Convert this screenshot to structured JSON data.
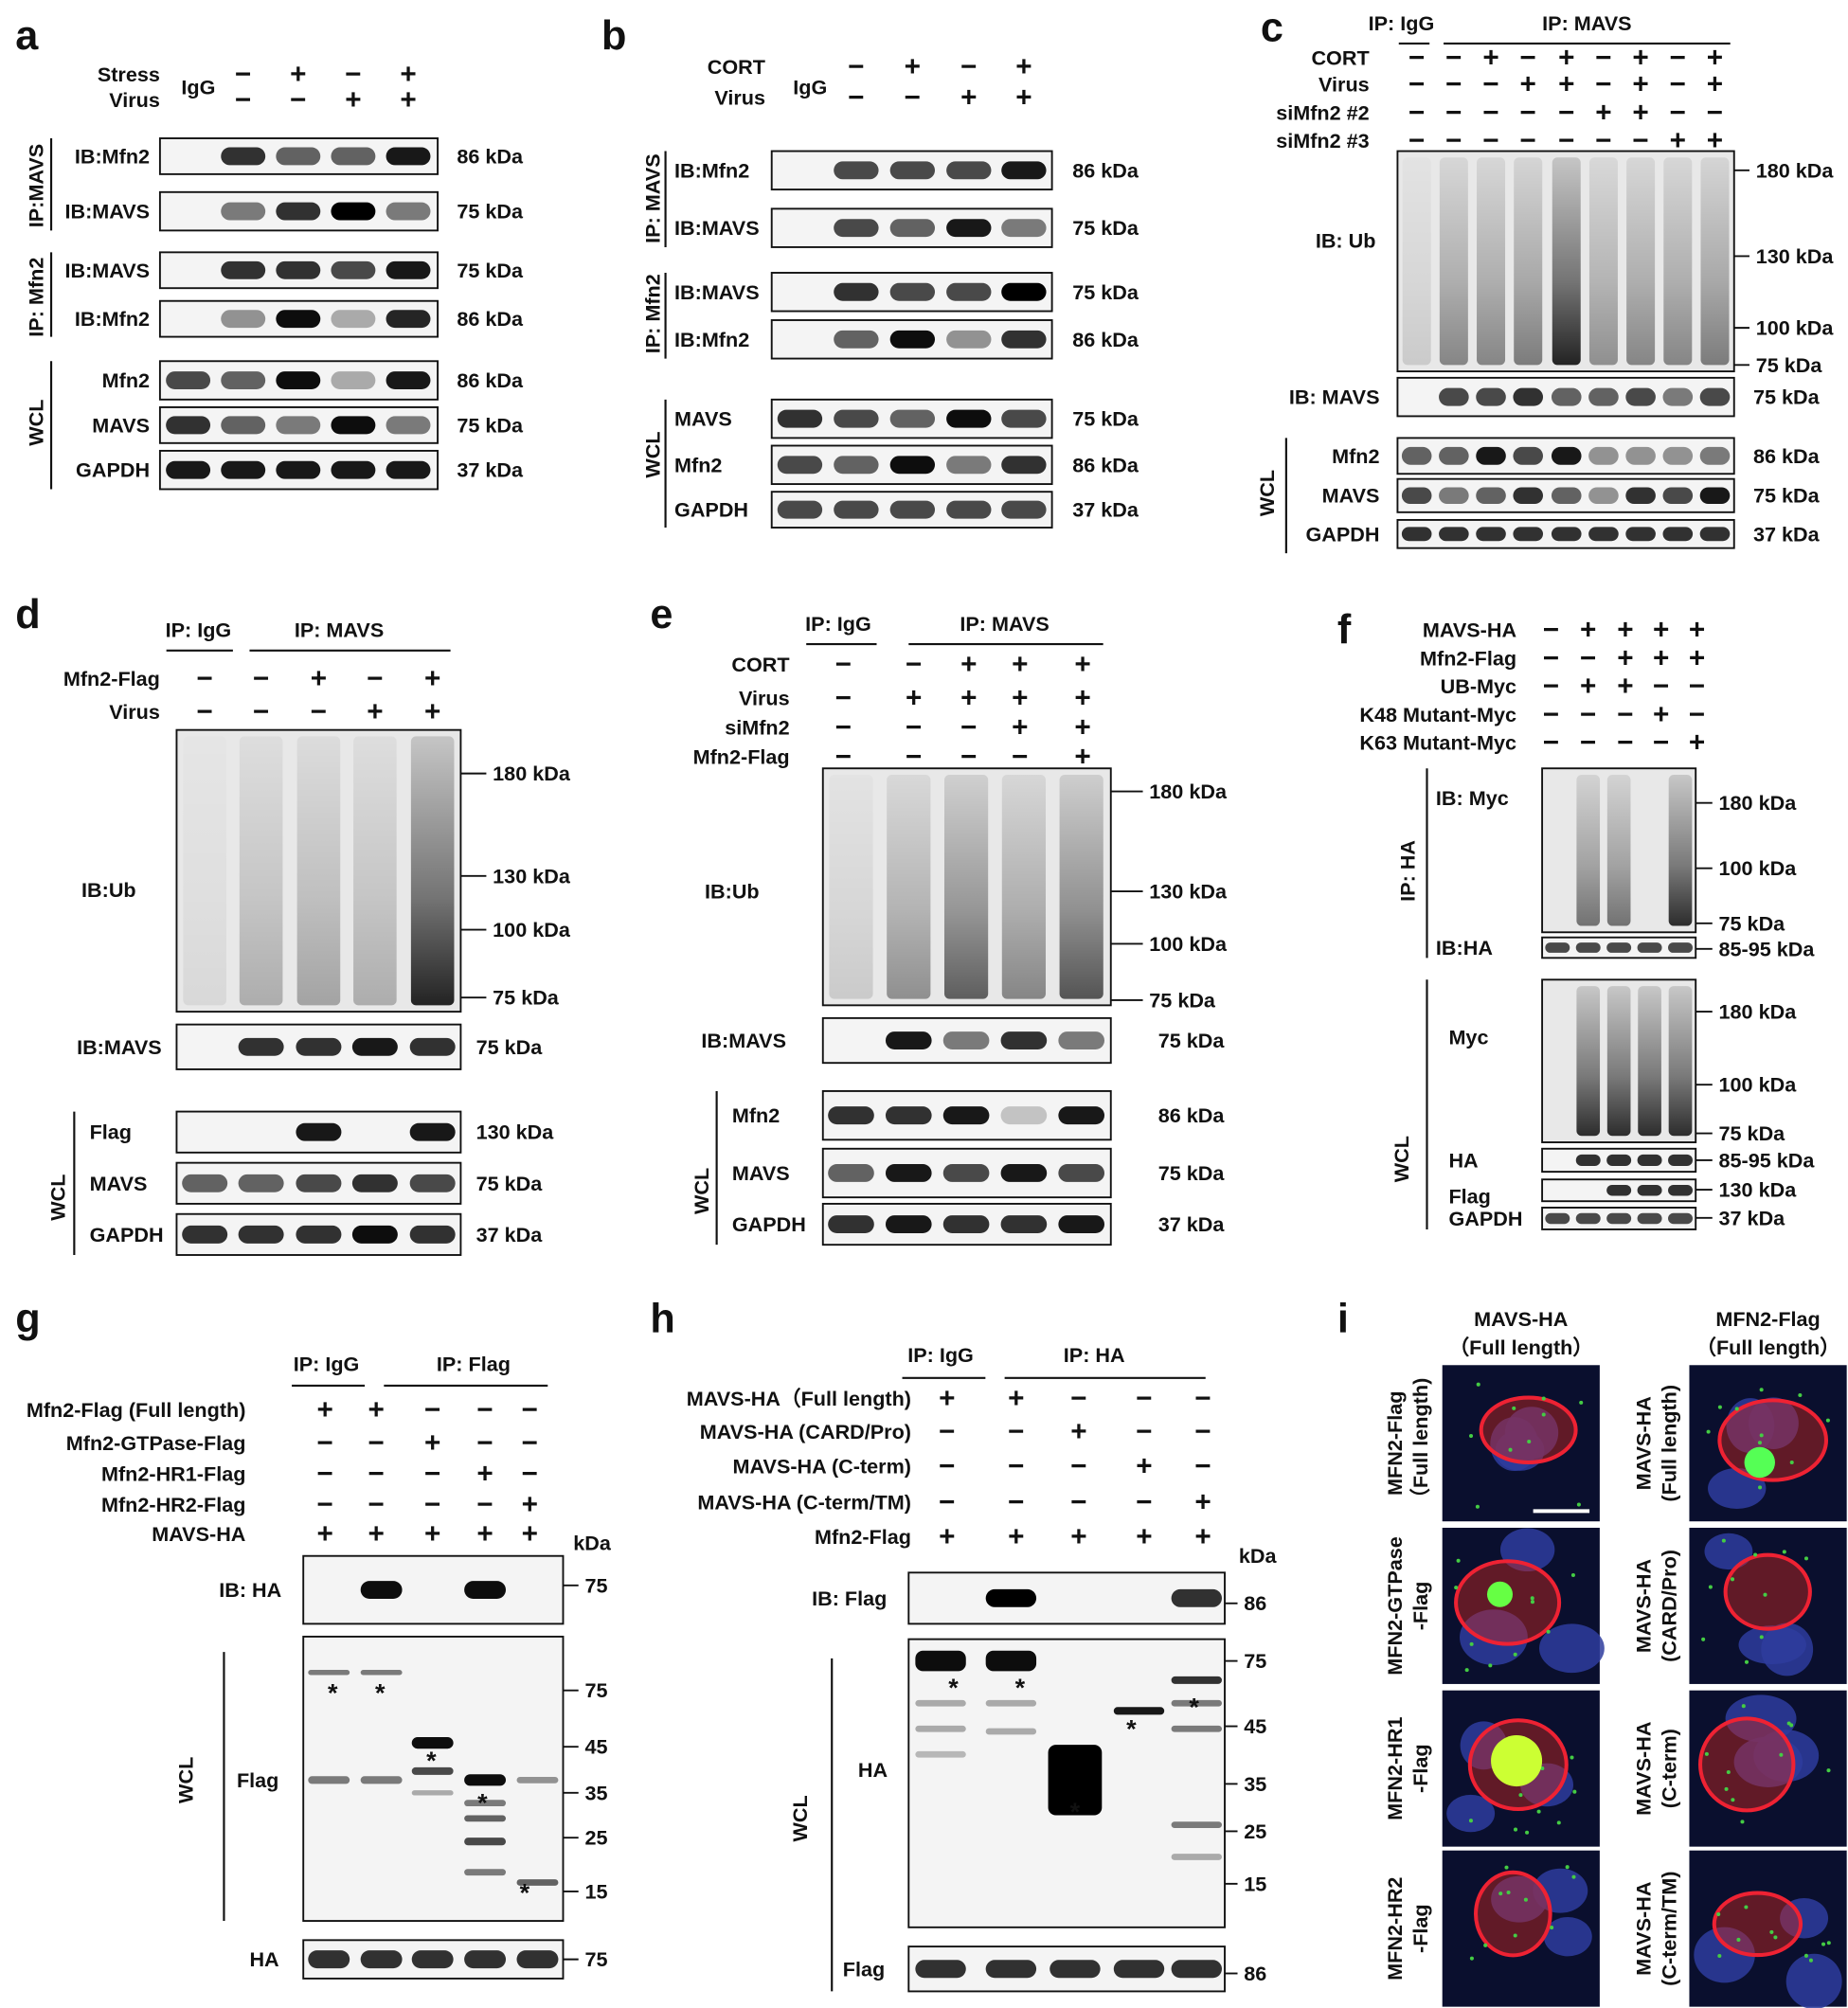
{
  "a": {
    "letter": "a",
    "heads": [
      "IgG"
    ],
    "rows": [
      {
        "label": "Stress",
        "signs": [
          "−",
          "+",
          "−",
          "+"
        ]
      },
      {
        "label": "Virus",
        "signs": [
          "−",
          "−",
          "+",
          "+"
        ]
      }
    ],
    "blots": [
      {
        "label": "IB:Mfn2",
        "markers": [
          "86 kDa"
        ]
      },
      {
        "label": "IB:MAVS",
        "markers": [
          "75 kDa"
        ]
      },
      {
        "label": "IB:MAVS",
        "markers": [
          "75 kDa"
        ]
      },
      {
        "label": "IB:Mfn2",
        "markers": [
          "86 kDa"
        ]
      },
      {
        "label": "Mfn2",
        "markers": [
          "86 kDa"
        ]
      },
      {
        "label": "MAVS",
        "markers": [
          "75 kDa"
        ]
      },
      {
        "label": "GAPDH",
        "markers": [
          "37 kDa"
        ]
      }
    ],
    "sides": [
      "IP:MAVS",
      "IP: Mfn2",
      "WCL"
    ]
  },
  "b": {
    "letter": "b",
    "heads": [
      "IgG"
    ],
    "rows": [
      {
        "label": "CORT",
        "signs": [
          "−",
          "+",
          "−",
          "+"
        ]
      },
      {
        "label": "Virus",
        "signs": [
          "−",
          "−",
          "+",
          "+"
        ]
      }
    ],
    "blots": [
      {
        "label": "IB:Mfn2",
        "markers": [
          "86 kDa"
        ]
      },
      {
        "label": "IB:MAVS",
        "markers": [
          "75 kDa"
        ]
      },
      {
        "label": "IB:MAVS",
        "markers": [
          "75 kDa"
        ]
      },
      {
        "label": "IB:Mfn2",
        "markers": [
          "86 kDa"
        ]
      },
      {
        "label": "MAVS",
        "markers": [
          "75 kDa"
        ]
      },
      {
        "label": "Mfn2",
        "markers": [
          "86 kDa"
        ]
      },
      {
        "label": "GAPDH",
        "markers": [
          "37 kDa"
        ]
      }
    ],
    "sides": [
      "IP: MAVS",
      "IP: Mfn2",
      "WCL"
    ]
  },
  "c": {
    "letter": "c",
    "heads": [
      "IP: IgG",
      "IP: MAVS"
    ],
    "rows": [
      {
        "label": "CORT",
        "signs": [
          "−",
          "−",
          "+",
          "−",
          "+",
          "−",
          "+",
          "−",
          "+"
        ]
      },
      {
        "label": "Virus",
        "signs": [
          "−",
          "−",
          "−",
          "+",
          "+",
          "−",
          "+",
          "−",
          "+"
        ]
      },
      {
        "label": "siMfn2 #2",
        "signs": [
          "−",
          "−",
          "−",
          "−",
          "−",
          "+",
          "+",
          "−",
          "−"
        ]
      },
      {
        "label": "siMfn2 #3",
        "signs": [
          "−",
          "−",
          "−",
          "−",
          "−",
          "−",
          "−",
          "+",
          "+"
        ]
      }
    ],
    "blots": [
      {
        "label": "IB: Ub",
        "markers": [
          "180 kDa",
          "130 kDa",
          "100 kDa",
          "75 kDa"
        ]
      },
      {
        "label": "IB: MAVS",
        "markers": [
          "75 kDa"
        ]
      },
      {
        "label": "Mfn2",
        "markers": [
          "86 kDa"
        ]
      },
      {
        "label": "MAVS",
        "markers": [
          "75 kDa"
        ]
      },
      {
        "label": "GAPDH",
        "markers": [
          "37 kDa"
        ]
      }
    ],
    "sides": [
      "WCL"
    ]
  },
  "d": {
    "letter": "d",
    "heads": [
      "IP: IgG",
      "IP: MAVS"
    ],
    "rows": [
      {
        "label": "Mfn2-Flag",
        "signs": [
          "−",
          "−",
          "+",
          "−",
          "+"
        ]
      },
      {
        "label": "Virus",
        "signs": [
          "−",
          "−",
          "−",
          "+",
          "+"
        ]
      }
    ],
    "blots": [
      {
        "label": "IB:Ub",
        "markers": [
          "180 kDa",
          "130 kDa",
          "100 kDa",
          "75 kDa"
        ]
      },
      {
        "label": "IB:MAVS",
        "markers": [
          "75 kDa"
        ]
      },
      {
        "label": "Flag",
        "markers": [
          "130 kDa"
        ]
      },
      {
        "label": "MAVS",
        "markers": [
          "75 kDa"
        ]
      },
      {
        "label": "GAPDH",
        "markers": [
          "37 kDa"
        ]
      }
    ],
    "sides": [
      "WCL"
    ]
  },
  "e": {
    "letter": "e",
    "heads": [
      "IP: IgG",
      "IP: MAVS"
    ],
    "rows": [
      {
        "label": "CORT",
        "signs": [
          "−",
          "−",
          "+",
          "+",
          "+"
        ]
      },
      {
        "label": "Virus",
        "signs": [
          "−",
          "+",
          "+",
          "+",
          "+"
        ]
      },
      {
        "label": "siMfn2",
        "signs": [
          "−",
          "−",
          "−",
          "+",
          "+"
        ]
      },
      {
        "label": "Mfn2-Flag",
        "signs": [
          "−",
          "−",
          "−",
          "−",
          "+"
        ]
      }
    ],
    "blots": [
      {
        "label": "IB:Ub",
        "markers": [
          "180 kDa",
          "130 kDa",
          "100 kDa",
          "75 kDa"
        ]
      },
      {
        "label": "IB:MAVS",
        "markers": [
          "75 kDa"
        ]
      },
      {
        "label": "Mfn2",
        "markers": [
          "86 kDa"
        ]
      },
      {
        "label": "MAVS",
        "markers": [
          "75 kDa"
        ]
      },
      {
        "label": "GAPDH",
        "markers": [
          "37 kDa"
        ]
      }
    ],
    "sides": [
      "WCL"
    ]
  },
  "f": {
    "letter": "f",
    "heads": [],
    "rows": [
      {
        "label": "MAVS-HA",
        "signs": [
          "−",
          "+",
          "+",
          "+",
          "+"
        ]
      },
      {
        "label": "Mfn2-Flag",
        "signs": [
          "−",
          "−",
          "+",
          "+",
          "+"
        ]
      },
      {
        "label": "UB-Myc",
        "signs": [
          "−",
          "+",
          "+",
          "−",
          "−"
        ]
      },
      {
        "label": "K48 Mutant-Myc",
        "signs": [
          "−",
          "−",
          "−",
          "+",
          "−"
        ]
      },
      {
        "label": "K63 Mutant-Myc",
        "signs": [
          "−",
          "−",
          "−",
          "−",
          "+"
        ]
      }
    ],
    "blots": [
      {
        "label": "IB: Myc",
        "markers": [
          "180 kDa",
          "100 kDa",
          "75 kDa"
        ]
      },
      {
        "label": "IB:HA",
        "markers": [
          "85-95 kDa"
        ]
      },
      {
        "label": "Myc",
        "markers": [
          "180 kDa",
          "100 kDa",
          "75 kDa"
        ]
      },
      {
        "label": "HA",
        "markers": [
          "85-95 kDa"
        ]
      },
      {
        "label": "Flag",
        "markers": [
          "130 kDa"
        ]
      },
      {
        "label": "GAPDH",
        "markers": [
          "37 kDa"
        ]
      }
    ],
    "sides": [
      "IP: HA",
      "WCL"
    ]
  },
  "g": {
    "letter": "g",
    "heads": [
      "IP: IgG",
      "IP: Flag"
    ],
    "kda": "kDa",
    "rows": [
      {
        "label": "Mfn2-Flag  (Full length)",
        "signs": [
          "+",
          "+",
          "−",
          "−",
          "−"
        ]
      },
      {
        "label": "Mfn2-GTPase-Flag",
        "signs": [
          "−",
          "−",
          "+",
          "−",
          "−"
        ]
      },
      {
        "label": "Mfn2-HR1-Flag",
        "signs": [
          "−",
          "−",
          "−",
          "+",
          "−"
        ]
      },
      {
        "label": "Mfn2-HR2-Flag",
        "signs": [
          "−",
          "−",
          "−",
          "−",
          "+"
        ]
      },
      {
        "label": "MAVS-HA",
        "signs": [
          "+",
          "+",
          "+",
          "+",
          "+"
        ]
      }
    ],
    "blots": [
      {
        "label": "IB: HA",
        "markers": [
          75
        ]
      },
      {
        "label": "Flag",
        "markers": [
          75,
          45,
          35,
          25,
          15
        ]
      },
      {
        "label": "HA",
        "markers": [
          75
        ]
      }
    ],
    "sides": [
      "WCL"
    ],
    "asterisks": [
      "*",
      "*",
      "*",
      "*",
      "*"
    ]
  },
  "h": {
    "letter": "h",
    "heads": [
      "IP: IgG",
      "IP: HA"
    ],
    "kda": "kDa",
    "rows": [
      {
        "label": "MAVS-HA（Full length)",
        "signs": [
          "+",
          "+",
          "−",
          "−",
          "−"
        ]
      },
      {
        "label": "MAVS-HA (CARD/Pro)",
        "signs": [
          "−",
          "−",
          "+",
          "−",
          "−"
        ]
      },
      {
        "label": "MAVS-HA (C-term)",
        "signs": [
          "−",
          "−",
          "−",
          "+",
          "−"
        ]
      },
      {
        "label": "MAVS-HA (C-term/TM)",
        "signs": [
          "−",
          "−",
          "−",
          "−",
          "+"
        ]
      },
      {
        "label": "Mfn2-Flag",
        "signs": [
          "+",
          "+",
          "+",
          "+",
          "+"
        ]
      }
    ],
    "blots": [
      {
        "label": "IB: Flag",
        "markers": [
          86
        ]
      },
      {
        "label": "HA",
        "markers": [
          75,
          45,
          35,
          25,
          15
        ]
      },
      {
        "label": "Flag",
        "markers": [
          86
        ]
      }
    ],
    "sides": [
      "WCL"
    ],
    "asterisks": [
      "*",
      "*",
      "*",
      "*",
      "*"
    ]
  },
  "i": {
    "letter": "i",
    "columns": [
      [
        "MAVS-HA",
        "（Full length）"
      ],
      [
        "MFN2-Flag",
        "（Full length）"
      ]
    ],
    "left": [
      [
        "MFN2-Flag",
        "（Full length)"
      ],
      [
        "MFN2-GTPase",
        "-Flag"
      ],
      [
        "MFN2-HR1",
        "-Flag"
      ],
      [
        "MFN2-HR2",
        "-Flag"
      ]
    ],
    "right": [
      [
        "MAVS-HA",
        "(Full length)"
      ],
      [
        "MAVS-HA",
        "(CARD/Pro)"
      ],
      [
        "MAVS-HA",
        "(C-term)"
      ],
      [
        "MAVS-HA",
        "(C-term/TM)"
      ]
    ]
  }
}
